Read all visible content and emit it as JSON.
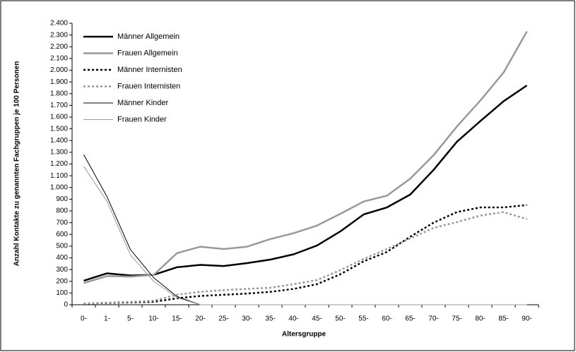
{
  "chart_data": {
    "type": "line",
    "x_label": "Altersgruppe",
    "y_label": "Anzahl Kontakte zu genannten Fachgruppen je 100 Personen",
    "categories": [
      "0-",
      "1-",
      "5-",
      "10-",
      "15-",
      "20-",
      "25-",
      "30-",
      "35-",
      "40-",
      "45-",
      "50-",
      "55-",
      "60-",
      "65-",
      "70-",
      "75-",
      "80-",
      "85-",
      "90-"
    ],
    "series": [
      {
        "name": "Männer Allgemein",
        "color": "#000000",
        "line_width": 2.5,
        "dashed": false,
        "values": [
          205,
          268,
          250,
          255,
          320,
          340,
          330,
          355,
          385,
          430,
          505,
          625,
          770,
          830,
          940,
          1150,
          1390,
          1565,
          1735,
          1870
        ]
      },
      {
        "name": "Frauen Allgemein",
        "color": "#999999",
        "line_width": 2.5,
        "dashed": false,
        "values": [
          185,
          245,
          240,
          255,
          440,
          495,
          475,
          495,
          560,
          610,
          675,
          775,
          880,
          930,
          1075,
          1275,
          1520,
          1740,
          1980,
          2330
        ]
      },
      {
        "name": "Männer Internisten",
        "color": "#000000",
        "line_width": 2.5,
        "dashed": true,
        "values": [
          10,
          15,
          20,
          25,
          55,
          75,
          85,
          95,
          110,
          135,
          175,
          260,
          370,
          450,
          580,
          700,
          790,
          830,
          830,
          850
        ]
      },
      {
        "name": "Frauen Internisten",
        "color": "#999999",
        "line_width": 2.5,
        "dashed": true,
        "values": [
          10,
          18,
          25,
          35,
          85,
          110,
          125,
          135,
          145,
          175,
          210,
          295,
          390,
          475,
          565,
          655,
          705,
          760,
          790,
          730
        ]
      },
      {
        "name": "Männer Kinder",
        "color": "#000000",
        "line_width": 1,
        "dashed": false,
        "values": [
          1280,
          920,
          470,
          230,
          70,
          0,
          0,
          0,
          0,
          0,
          0,
          0,
          0,
          0,
          0,
          0,
          0,
          0,
          0,
          0
        ]
      },
      {
        "name": "Frauen Kinder",
        "color": "#999999",
        "line_width": 1,
        "dashed": false,
        "values": [
          1180,
          880,
          425,
          200,
          60,
          0,
          0,
          0,
          0,
          0,
          0,
          0,
          0,
          0,
          0,
          0,
          0,
          0,
          0,
          0
        ]
      }
    ],
    "ylim": [
      0,
      2400
    ],
    "yticks": [
      0,
      100,
      200,
      300,
      400,
      500,
      600,
      700,
      800,
      900,
      {
        "value": 1000,
        "label": "1.000"
      },
      {
        "value": 1100,
        "label": "1.100"
      },
      {
        "value": 1200,
        "label": "1.200"
      },
      {
        "value": 1300,
        "label": "1.300"
      },
      {
        "value": 1400,
        "label": "1.400"
      },
      {
        "value": 1500,
        "label": "1.500"
      },
      {
        "value": 1600,
        "label": "1.600"
      },
      {
        "value": 1700,
        "label": "1.700"
      },
      {
        "value": 1800,
        "label": "1.800"
      },
      {
        "value": 1900,
        "label": "1.900"
      },
      {
        "value": 2000,
        "label": "2.000"
      },
      {
        "value": 2100,
        "label": "2.100"
      },
      {
        "value": 2200,
        "label": "2.200"
      },
      {
        "value": 2300,
        "label": "2.300"
      },
      {
        "value": 2400,
        "label": "2.400"
      }
    ],
    "legend": "upper left"
  }
}
